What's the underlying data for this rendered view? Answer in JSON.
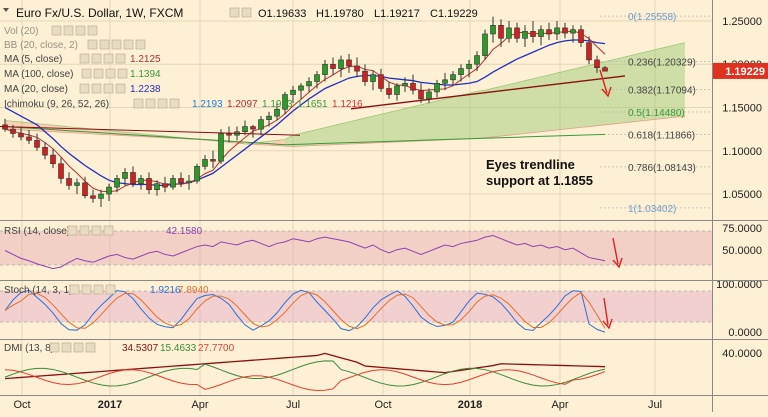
{
  "header": {
    "symbol": "Euro Fx/U.S. Dollar, 1W, FXCM",
    "open": "O1.19633",
    "high": "H1.19780",
    "low": "L1.19217",
    "close": "C1.19229"
  },
  "indicators": [
    {
      "label": "Vol (20)",
      "values": [],
      "color": "#888888"
    },
    {
      "label": "BB (20, close, 2)",
      "values": [],
      "color": "#888888"
    },
    {
      "label": "MA (5, close)",
      "values": [
        "1.2125"
      ],
      "color": "#b03030"
    },
    {
      "label": "MA (100, close)",
      "values": [
        "1.1394"
      ],
      "color": "#3a9a3a"
    },
    {
      "label": "MA (20, close)",
      "values": [
        "1.2238"
      ],
      "color": "#2030c0"
    },
    {
      "label": "Ichimoku (9, 26, 52, 26)",
      "values": [
        "1.2193",
        "1.2097",
        "1.1923",
        "1.1651",
        "1.1216"
      ],
      "colors": [
        "#2080e0",
        "#b03030",
        "#3a9a3a",
        "#3a9a3a",
        "#e03030"
      ]
    }
  ],
  "price_axis": [
    "1.25000",
    "1.20000",
    "1.15000",
    "1.10000",
    "1.05000"
  ],
  "last_price": "1.19229",
  "fib_levels": [
    {
      "label": "0(1.25558)",
      "value": 1.25558,
      "color": "#6a9ad0"
    },
    {
      "label": "0.236(1.20329)",
      "value": 1.20329,
      "color": "#444444"
    },
    {
      "label": "0.382(1.17094)",
      "value": 1.17094,
      "color": "#444444"
    },
    {
      "label": "0.5(1.14480)",
      "value": 1.1448,
      "color": "#3a9a3a"
    },
    {
      "label": "0.618(1.11866)",
      "value": 1.11866,
      "color": "#444444"
    },
    {
      "label": "0.786(1.08143)",
      "value": 1.08143,
      "color": "#444444"
    },
    {
      "label": "1(1.03402)",
      "value": 1.03402,
      "color": "#6a9ad0"
    }
  ],
  "annotation": {
    "line1": "Eyes trendline",
    "line2": "support at 1.1855"
  },
  "rsi": {
    "label": "RSI (14, close)",
    "value": "42.1580",
    "axis": [
      "75.0000",
      "50.0000"
    ]
  },
  "stoch": {
    "label": "Stoch (14, 3, 1)",
    "k": "1.9216",
    "d": "7.8940",
    "axis": [
      "100.0000",
      "0.0000"
    ]
  },
  "dmi": {
    "label": "DMI (13, 8)",
    "adx": "34.5307",
    "plus": "15.4633",
    "minus": "27.7700",
    "axis": [
      "40.0000"
    ]
  },
  "time_axis": [
    "Oct",
    "2017",
    "Apr",
    "Jul",
    "Oct",
    "2018",
    "Apr",
    "Jul"
  ],
  "chart_data": {
    "type": "candlestick",
    "instrument": "Euro Fx/U.S. Dollar",
    "timeframe": "1W",
    "ylim": [
      1.02,
      1.265
    ],
    "candles": [
      [
        1.13,
        1.137,
        1.122,
        1.125
      ],
      [
        1.125,
        1.13,
        1.115,
        1.12
      ],
      [
        1.12,
        1.128,
        1.112,
        1.116
      ],
      [
        1.116,
        1.124,
        1.108,
        1.112
      ],
      [
        1.112,
        1.12,
        1.1,
        1.104
      ],
      [
        1.104,
        1.11,
        1.09,
        1.095
      ],
      [
        1.095,
        1.102,
        1.08,
        1.085
      ],
      [
        1.085,
        1.092,
        1.062,
        1.068
      ],
      [
        1.068,
        1.075,
        1.055,
        1.06
      ],
      [
        1.06,
        1.068,
        1.05,
        1.063
      ],
      [
        1.063,
        1.07,
        1.045,
        1.048
      ],
      [
        1.048,
        1.055,
        1.04,
        1.045
      ],
      [
        1.045,
        1.055,
        1.035,
        1.05
      ],
      [
        1.05,
        1.062,
        1.042,
        1.058
      ],
      [
        1.058,
        1.072,
        1.052,
        1.068
      ],
      [
        1.068,
        1.08,
        1.06,
        1.075
      ],
      [
        1.075,
        1.082,
        1.058,
        1.062
      ],
      [
        1.062,
        1.072,
        1.055,
        1.068
      ],
      [
        1.068,
        1.075,
        1.05,
        1.055
      ],
      [
        1.055,
        1.066,
        1.048,
        1.062
      ],
      [
        1.062,
        1.07,
        1.052,
        1.058
      ],
      [
        1.058,
        1.072,
        1.055,
        1.068
      ],
      [
        1.068,
        1.075,
        1.058,
        1.063
      ],
      [
        1.063,
        1.072,
        1.055,
        1.065
      ],
      [
        1.065,
        1.085,
        1.062,
        1.082
      ],
      [
        1.082,
        1.095,
        1.078,
        1.09
      ],
      [
        1.09,
        1.1,
        1.08,
        1.088
      ],
      [
        1.088,
        1.125,
        1.085,
        1.12
      ],
      [
        1.12,
        1.128,
        1.11,
        1.118
      ],
      [
        1.118,
        1.128,
        1.112,
        1.122
      ],
      [
        1.122,
        1.135,
        1.118,
        1.128
      ],
      [
        1.128,
        1.13,
        1.115,
        1.125
      ],
      [
        1.125,
        1.14,
        1.118,
        1.136
      ],
      [
        1.136,
        1.145,
        1.128,
        1.14
      ],
      [
        1.14,
        1.155,
        1.135,
        1.148
      ],
      [
        1.148,
        1.168,
        1.142,
        1.165
      ],
      [
        1.165,
        1.175,
        1.155,
        1.17
      ],
      [
        1.17,
        1.178,
        1.16,
        1.175
      ],
      [
        1.175,
        1.185,
        1.168,
        1.18
      ],
      [
        1.18,
        1.192,
        1.172,
        1.188
      ],
      [
        1.188,
        1.205,
        1.18,
        1.2
      ],
      [
        1.2,
        1.208,
        1.188,
        1.195
      ],
      [
        1.195,
        1.21,
        1.185,
        1.205
      ],
      [
        1.205,
        1.212,
        1.19,
        1.198
      ],
      [
        1.198,
        1.208,
        1.185,
        1.192
      ],
      [
        1.192,
        1.2,
        1.175,
        1.18
      ],
      [
        1.18,
        1.192,
        1.17,
        1.188
      ],
      [
        1.188,
        1.195,
        1.168,
        1.172
      ],
      [
        1.172,
        1.18,
        1.16,
        1.165
      ],
      [
        1.165,
        1.178,
        1.158,
        1.175
      ],
      [
        1.175,
        1.185,
        1.168,
        1.178
      ],
      [
        1.178,
        1.188,
        1.165,
        1.17
      ],
      [
        1.17,
        1.178,
        1.155,
        1.16
      ],
      [
        1.16,
        1.172,
        1.155,
        1.168
      ],
      [
        1.168,
        1.182,
        1.162,
        1.178
      ],
      [
        1.178,
        1.19,
        1.17,
        1.182
      ],
      [
        1.182,
        1.192,
        1.175,
        1.188
      ],
      [
        1.188,
        1.2,
        1.18,
        1.195
      ],
      [
        1.195,
        1.205,
        1.185,
        1.2
      ],
      [
        1.2,
        1.215,
        1.192,
        1.21
      ],
      [
        1.21,
        1.24,
        1.205,
        1.235
      ],
      [
        1.235,
        1.255,
        1.225,
        1.245
      ],
      [
        1.245,
        1.252,
        1.22,
        1.23
      ],
      [
        1.23,
        1.25,
        1.225,
        1.242
      ],
      [
        1.242,
        1.248,
        1.225,
        1.23
      ],
      [
        1.23,
        1.245,
        1.22,
        1.238
      ],
      [
        1.238,
        1.25,
        1.225,
        1.232
      ],
      [
        1.232,
        1.245,
        1.222,
        1.24
      ],
      [
        1.24,
        1.248,
        1.228,
        1.235
      ],
      [
        1.235,
        1.25,
        1.228,
        1.242
      ],
      [
        1.242,
        1.248,
        1.23,
        1.236
      ],
      [
        1.236,
        1.245,
        1.225,
        1.24
      ],
      [
        1.24,
        1.245,
        1.22,
        1.225
      ],
      [
        1.225,
        1.232,
        1.2,
        1.205
      ],
      [
        1.205,
        1.21,
        1.19,
        1.196
      ],
      [
        1.196,
        1.198,
        1.192,
        1.192
      ]
    ],
    "ma20": [
      1.15,
      1.145,
      1.14,
      1.135,
      1.13,
      1.122,
      1.114,
      1.105,
      1.097,
      1.09,
      1.083,
      1.077,
      1.071,
      1.066,
      1.063,
      1.062,
      1.061,
      1.061,
      1.061,
      1.06,
      1.06,
      1.061,
      1.062,
      1.063,
      1.066,
      1.07,
      1.074,
      1.081,
      1.088,
      1.095,
      1.102,
      1.109,
      1.116,
      1.123,
      1.13,
      1.138,
      1.146,
      1.153,
      1.16,
      1.166,
      1.172,
      1.176,
      1.18,
      1.184,
      1.186,
      1.187,
      1.187,
      1.186,
      1.184,
      1.183,
      1.182,
      1.181,
      1.179,
      1.178,
      1.177,
      1.176,
      1.176,
      1.177,
      1.178,
      1.18,
      1.185,
      1.191,
      1.196,
      1.201,
      1.206,
      1.21,
      1.214,
      1.218,
      1.222,
      1.225,
      1.227,
      1.228,
      1.228,
      1.227,
      1.225,
      1.2238
    ],
    "trendline": [
      [
        52,
        1.155
      ],
      [
        85,
        1.186
      ]
    ]
  }
}
